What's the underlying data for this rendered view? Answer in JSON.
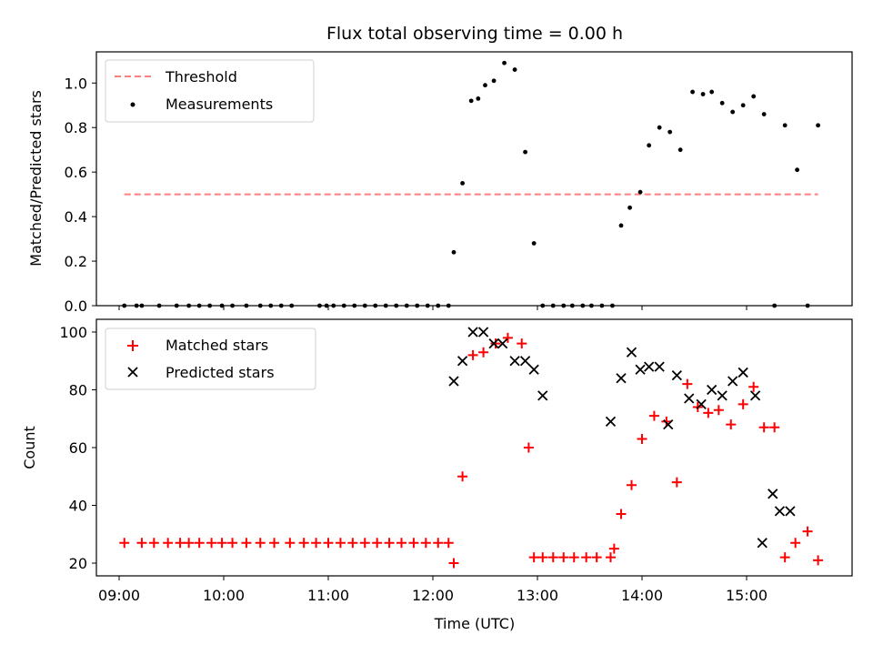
{
  "chart_data": [
    {
      "type": "scatter",
      "title": "Flux total observing time = 0.00 h",
      "xlabel": "",
      "ylabel": "Matched/Predicted stars",
      "ylim": [
        0,
        1.14
      ],
      "yticks": [
        "0.0",
        "0.2",
        "0.4",
        "0.6",
        "0.8",
        "1.0"
      ],
      "legend_position": "upper-left",
      "series": [
        {
          "name": "Threshold",
          "kind": "dashed-line",
          "color": "#ff7f7f",
          "x": [
            "09:03",
            "15:41"
          ],
          "y": [
            0.5,
            0.5
          ]
        },
        {
          "name": "Measurements",
          "kind": "points",
          "color": "#000000",
          "x": [
            "09:03",
            "09:10",
            "09:13",
            "09:23",
            "09:33",
            "09:40",
            "09:46",
            "09:52",
            "09:59",
            "10:05",
            "10:13",
            "10:21",
            "10:27",
            "10:33",
            "10:39",
            "10:55",
            "10:59",
            "11:03",
            "11:09",
            "11:15",
            "11:21",
            "11:27",
            "11:33",
            "11:39",
            "11:45",
            "11:51",
            "11:57",
            "12:03",
            "12:09",
            "12:12",
            "12:17",
            "12:22",
            "12:26",
            "12:30",
            "12:35",
            "12:41",
            "12:47",
            "12:53",
            "12:58",
            "13:03",
            "13:09",
            "13:15",
            "13:20",
            "13:26",
            "13:31",
            "13:37",
            "13:43",
            "13:48",
            "13:53",
            "13:59",
            "14:04",
            "14:10",
            "14:16",
            "14:22",
            "14:29",
            "14:35",
            "14:40",
            "14:46",
            "14:52",
            "14:58",
            "15:04",
            "15:10",
            "15:16",
            "15:22",
            "15:29",
            "15:35",
            "15:41"
          ],
          "y": [
            0,
            0,
            0,
            0,
            0,
            0,
            0,
            0,
            0,
            0,
            0,
            0,
            0,
            0,
            0,
            0,
            0,
            0,
            0,
            0,
            0,
            0,
            0,
            0,
            0,
            0,
            0,
            0,
            0,
            0.24,
            0.55,
            0.92,
            0.93,
            0.99,
            1.01,
            1.09,
            1.06,
            0.69,
            0.28,
            0,
            0,
            0,
            0,
            0,
            0,
            0,
            0,
            0.36,
            0.44,
            0.51,
            0.72,
            0.8,
            0.78,
            0.7,
            0.96,
            0.95,
            0.96,
            0.91,
            0.87,
            0.9,
            0.94,
            0.86,
            0,
            0.81,
            0.61,
            0,
            0.81
          ]
        }
      ]
    },
    {
      "type": "scatter",
      "title": "",
      "xlabel": "Time (UTC)",
      "ylabel": "Count",
      "ylim": [
        15.6,
        104.4
      ],
      "yticks": [
        "20",
        "40",
        "60",
        "80",
        "100"
      ],
      "xticks": [
        "09:00",
        "10:00",
        "11:00",
        "12:00",
        "13:00",
        "14:00",
        "15:00"
      ],
      "legend_position": "upper-left",
      "series": [
        {
          "name": "Matched stars",
          "kind": "plus",
          "color": "#ff0000",
          "x": [
            "09:03",
            "09:13",
            "09:20",
            "09:28",
            "09:35",
            "09:40",
            "09:46",
            "09:53",
            "09:59",
            "10:05",
            "10:13",
            "10:21",
            "10:29",
            "10:38",
            "10:46",
            "10:53",
            "11:00",
            "11:07",
            "11:14",
            "11:21",
            "11:28",
            "11:35",
            "11:42",
            "11:49",
            "11:56",
            "12:03",
            "12:09",
            "12:12",
            "12:17",
            "12:23",
            "12:29",
            "12:36",
            "12:43",
            "12:51",
            "12:55",
            "12:58",
            "13:03",
            "13:09",
            "13:15",
            "13:21",
            "13:28",
            "13:34",
            "13:42",
            "13:44",
            "13:48",
            "13:54",
            "14:00",
            "14:07",
            "14:14",
            "14:20",
            "14:26",
            "14:32",
            "14:38",
            "14:44",
            "14:51",
            "14:58",
            "15:04",
            "15:10",
            "15:16",
            "15:22",
            "15:28",
            "15:35",
            "15:41"
          ],
          "y": [
            27,
            27,
            27,
            27,
            27,
            27,
            27,
            27,
            27,
            27,
            27,
            27,
            27,
            27,
            27,
            27,
            27,
            27,
            27,
            27,
            27,
            27,
            27,
            27,
            27,
            27,
            27,
            20,
            50,
            92,
            93,
            96,
            98,
            96,
            60,
            22,
            22,
            22,
            22,
            22,
            22,
            22,
            22,
            25,
            37,
            47,
            63,
            71,
            69,
            48,
            82,
            74,
            72,
            73,
            68,
            75,
            81,
            67,
            67,
            22,
            27,
            31,
            21
          ]
        },
        {
          "name": "Predicted stars",
          "kind": "x",
          "color": "#000000",
          "x": [
            "12:12",
            "12:17",
            "12:23",
            "12:29",
            "12:35",
            "12:40",
            "12:47",
            "12:53",
            "12:58",
            "13:03",
            "13:42",
            "13:48",
            "13:54",
            "13:59",
            "14:04",
            "14:10",
            "14:15",
            "14:20",
            "14:27",
            "14:34",
            "14:40",
            "14:46",
            "14:52",
            "14:58",
            "15:05",
            "15:09",
            "15:15",
            "15:19",
            "15:25"
          ],
          "y": [
            83,
            90,
            100,
            100,
            96,
            96,
            90,
            90,
            87,
            78,
            69,
            84,
            93,
            87,
            88,
            88,
            68,
            85,
            77,
            75,
            80,
            78,
            83,
            86,
            78,
            27,
            44,
            38,
            38
          ]
        }
      ]
    }
  ]
}
